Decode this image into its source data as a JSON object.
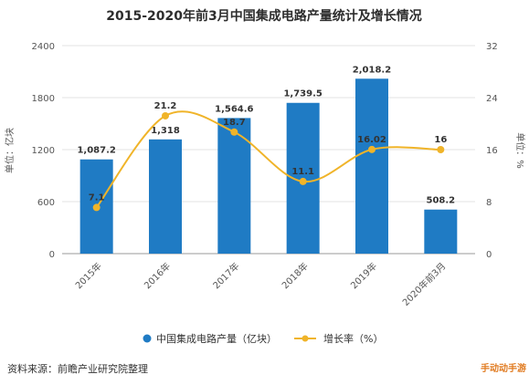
{
  "chart_data": {
    "type": "bar",
    "title": "2015-2020年前3月中国集成电路产量统计及增长情况",
    "categories": [
      "2015年",
      "2016年",
      "2017年",
      "2018年",
      "2019年",
      "2020年前3月"
    ],
    "series": [
      {
        "name": "中国集成电路产量（亿块）",
        "type": "bar",
        "values": [
          1087.2,
          1318,
          1564.6,
          1739.5,
          2018.2,
          508.2
        ],
        "labels": [
          "1,087.2",
          "1,318",
          "1,564.6",
          "1,739.5",
          "2,018.2",
          "508.2"
        ],
        "color": "#1f7bc4"
      },
      {
        "name": "增长率（%）",
        "type": "line",
        "values": [
          7.1,
          21.2,
          18.7,
          11.1,
          16.02,
          16
        ],
        "labels": [
          "7.1",
          "21.2",
          "18.7",
          "11.1",
          "16.02",
          "16"
        ],
        "color": "#f0b429"
      }
    ],
    "yleft": {
      "label": "单位：亿块",
      "ylim": [
        0,
        2400
      ],
      "ticks": [
        "0",
        "600",
        "1200",
        "1800",
        "2400"
      ]
    },
    "yright": {
      "label": "单位：%",
      "ylim": [
        0,
        32
      ],
      "ticks": [
        "0",
        "8",
        "16",
        "24",
        "32"
      ]
    },
    "legend_position": "bottom"
  },
  "source": "资料来源：前瞻产业研究院整理",
  "watermark": "手动动手游"
}
